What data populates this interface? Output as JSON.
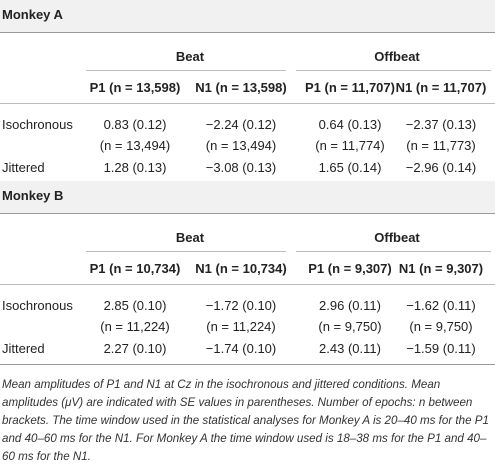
{
  "sections": [
    {
      "title": "Monkey A",
      "groups": [
        "Beat",
        "Offbeat"
      ],
      "columns": [
        "P1 (n = 13,598)",
        "N1 (n = 13,598)",
        "P1 (n = 11,707)",
        "N1 (n = 11,707)"
      ],
      "rows": [
        {
          "label": "Isochronous",
          "cells": [
            "0.83 (0.12)",
            "−2.24 (0.12)",
            "0.64 (0.13)",
            "−2.37 (0.13)"
          ],
          "counts": [
            "(n = 13,494)",
            "(n = 13,494)",
            "(n = 11,774)",
            "(n = 11,773)"
          ]
        },
        {
          "label": "Jittered",
          "cells": [
            "1.28 (0.13)",
            "−3.08 (0.13)",
            "1.65 (0.14)",
            "−2.96 (0.14)"
          ]
        }
      ]
    },
    {
      "title": "Monkey B",
      "groups": [
        "Beat",
        "Offbeat"
      ],
      "columns": [
        "P1 (n = 10,734)",
        "N1 (n = 10,734)",
        "P1 (n = 9,307)",
        "N1 (n = 9,307)"
      ],
      "rows": [
        {
          "label": "Isochronous",
          "cells": [
            "2.85 (0.10)",
            "−1.72 (0.10)",
            "2.96 (0.11)",
            "−1.62 (0.11)"
          ],
          "counts": [
            "(n = 11,224)",
            "(n = 11,224)",
            "(n = 9,750)",
            "(n = 9,750)"
          ]
        },
        {
          "label": "Jittered",
          "cells": [
            "2.27 (0.10)",
            "−1.74 (0.10)",
            "2.43 (0.11)",
            "−1.59 (0.11)"
          ]
        }
      ]
    }
  ],
  "caption": "Mean amplitudes of P1 and N1 at Cz in the isochronous and jittered conditions. Mean amplitudes (μV) are indicated with SE values in parentheses. Number of epochs: n between brackets. The time window used in the statistical analyses for Monkey A is 20–40 ms for the P1 and 40–60 ms for the N1. For Monkey A the time window used is 18–38 ms for the P1 and 40–60 ms for the N1."
}
